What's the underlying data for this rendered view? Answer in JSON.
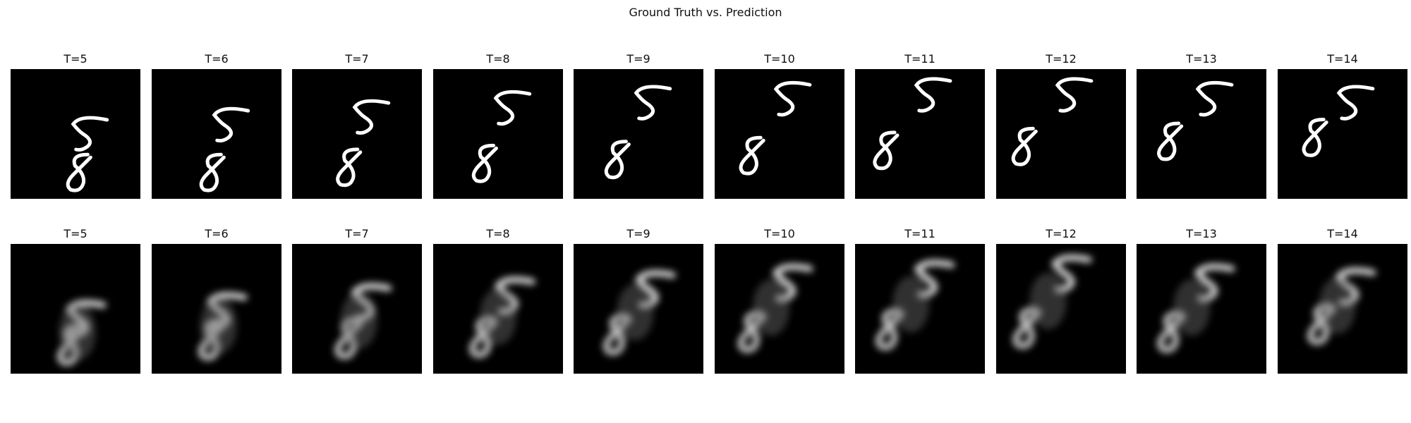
{
  "title": "Ground Truth vs. Prediction",
  "rows": [
    {
      "kind": "ground-truth",
      "frames": [
        {
          "label": "T=5",
          "five": [
            0.58,
            0.5
          ],
          "eight": [
            0.54,
            0.8
          ]
        },
        {
          "label": "T=6",
          "five": [
            0.58,
            0.43
          ],
          "eight": [
            0.48,
            0.8
          ]
        },
        {
          "label": "T=7",
          "five": [
            0.58,
            0.37
          ],
          "eight": [
            0.45,
            0.76
          ]
        },
        {
          "label": "T=8",
          "five": [
            0.58,
            0.3
          ],
          "eight": [
            0.41,
            0.73
          ]
        },
        {
          "label": "T=9",
          "five": [
            0.58,
            0.26
          ],
          "eight": [
            0.35,
            0.7
          ]
        },
        {
          "label": "T=10",
          "five": [
            0.57,
            0.23
          ],
          "eight": [
            0.3,
            0.67
          ]
        },
        {
          "label": "T=11",
          "five": [
            0.57,
            0.2
          ],
          "eight": [
            0.25,
            0.63
          ]
        },
        {
          "label": "T=12",
          "five": [
            0.57,
            0.2
          ],
          "eight": [
            0.23,
            0.6
          ]
        },
        {
          "label": "T=13",
          "five": [
            0.57,
            0.23
          ],
          "eight": [
            0.27,
            0.56
          ]
        },
        {
          "label": "T=14",
          "five": [
            0.57,
            0.26
          ],
          "eight": [
            0.3,
            0.53
          ]
        }
      ]
    },
    {
      "kind": "prediction",
      "frames": [
        {
          "label": "T=5",
          "five": [
            0.55,
            0.58
          ],
          "eight": [
            0.48,
            0.78
          ]
        },
        {
          "label": "T=6",
          "five": [
            0.55,
            0.52
          ],
          "eight": [
            0.48,
            0.74
          ]
        },
        {
          "label": "T=7",
          "five": [
            0.58,
            0.45
          ],
          "eight": [
            0.45,
            0.73
          ]
        },
        {
          "label": "T=8",
          "five": [
            0.6,
            0.4
          ],
          "eight": [
            0.4,
            0.72
          ]
        },
        {
          "label": "T=9",
          "five": [
            0.6,
            0.35
          ],
          "eight": [
            0.35,
            0.7
          ]
        },
        {
          "label": "T=10",
          "five": [
            0.57,
            0.3
          ],
          "eight": [
            0.3,
            0.68
          ]
        },
        {
          "label": "T=11",
          "five": [
            0.58,
            0.27
          ],
          "eight": [
            0.28,
            0.66
          ]
        },
        {
          "label": "T=12",
          "five": [
            0.55,
            0.23
          ],
          "eight": [
            0.25,
            0.65
          ]
        },
        {
          "label": "T=13",
          "five": [
            0.57,
            0.3
          ],
          "eight": [
            0.28,
            0.68
          ]
        },
        {
          "label": "T=14",
          "five": [
            0.57,
            0.33
          ],
          "eight": [
            0.35,
            0.62
          ]
        }
      ]
    }
  ]
}
